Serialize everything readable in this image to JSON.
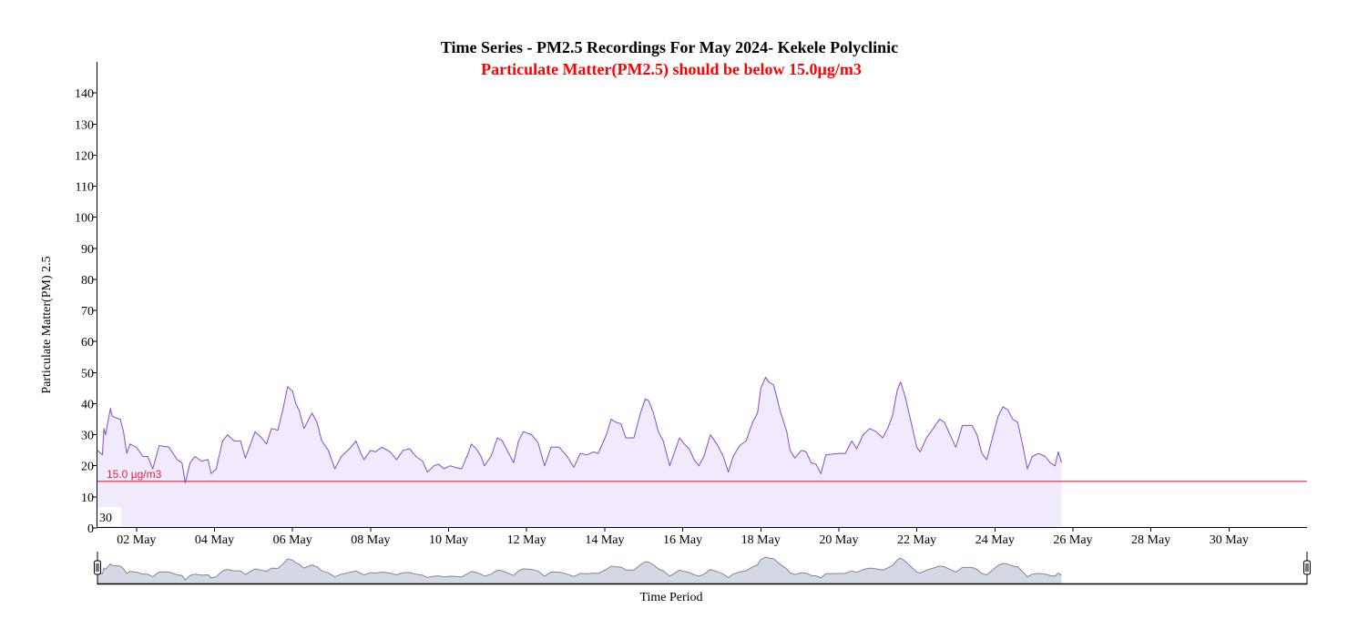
{
  "chart_data": {
    "type": "area",
    "title": "Time Series - PM2.5 Recordings For May 2024- Kekele Polyclinic",
    "subtitle": "Particulate Matter(PM2.5) should be below 15.0µg/m3",
    "ylabel": "Particulate Matter(PM) 2.5",
    "xlabel": "Time Period",
    "ylim": [
      0,
      150
    ],
    "yticks": [
      0,
      10,
      20,
      30,
      40,
      50,
      60,
      70,
      80,
      90,
      100,
      110,
      120,
      130,
      140
    ],
    "xlim": [
      "2024-05-01",
      "2024-06-01"
    ],
    "xtick_labels": [
      {
        "date": "2024-05-02",
        "label": "02 May"
      },
      {
        "date": "2024-05-04",
        "label": "04 May"
      },
      {
        "date": "2024-05-06",
        "label": "06 May"
      },
      {
        "date": "2024-05-08",
        "label": "08 May"
      },
      {
        "date": "2024-05-10",
        "label": "10 May"
      },
      {
        "date": "2024-05-12",
        "label": "12 May"
      },
      {
        "date": "2024-05-14",
        "label": "14 May"
      },
      {
        "date": "2024-05-16",
        "label": "16 May"
      },
      {
        "date": "2024-05-18",
        "label": "18 May"
      },
      {
        "date": "2024-05-20",
        "label": "20 May"
      },
      {
        "date": "2024-05-22",
        "label": "22 May"
      },
      {
        "date": "2024-05-24",
        "label": "24 May"
      },
      {
        "date": "2024-05-26",
        "label": "26 May"
      },
      {
        "date": "2024-05-28",
        "label": "28 May"
      },
      {
        "date": "2024-05-30",
        "label": "30 May"
      }
    ],
    "threshold": {
      "value": 15.0,
      "label": "15.0 µg/m3",
      "color": "#e8203c"
    },
    "line_color": "#7b4fd6",
    "fill_color": "#f1e9fc",
    "navigator_fill": "#d3d8e4",
    "navigator_line": "#7c889f",
    "range_selector_value": "30",
    "grid": false,
    "legend": "none",
    "series": [
      {
        "points": [
          [
            "2024-05-01 00:00",
            25
          ],
          [
            "2024-05-01 03:00",
            23.5
          ],
          [
            "2024-05-01 04:00",
            32
          ],
          [
            "2024-05-01 05:00",
            30
          ],
          [
            "2024-05-01 06:00",
            33
          ],
          [
            "2024-05-01 08:00",
            38.5
          ],
          [
            "2024-05-01 09:00",
            36
          ],
          [
            "2024-05-01 11:00",
            35.5
          ],
          [
            "2024-05-01 14:00",
            35
          ],
          [
            "2024-05-01 16:00",
            31
          ],
          [
            "2024-05-01 18:00",
            24
          ],
          [
            "2024-05-01 20:00",
            27
          ],
          [
            "2024-05-02 00:00",
            26
          ],
          [
            "2024-05-02 04:00",
            23
          ],
          [
            "2024-05-02 07:00",
            23
          ],
          [
            "2024-05-02 10:00",
            19
          ],
          [
            "2024-05-02 14:00",
            26.5
          ],
          [
            "2024-05-02 20:00",
            26
          ],
          [
            "2024-05-03 01:00",
            22
          ],
          [
            "2024-05-03 04:00",
            21
          ],
          [
            "2024-05-03 06:00",
            14.5
          ],
          [
            "2024-05-03 09:00",
            21
          ],
          [
            "2024-05-03 12:00",
            23
          ],
          [
            "2024-05-03 16:00",
            21.5
          ],
          [
            "2024-05-03 20:00",
            22
          ],
          [
            "2024-05-03 22:00",
            17.5
          ],
          [
            "2024-05-04 01:00",
            19
          ],
          [
            "2024-05-04 05:00",
            28
          ],
          [
            "2024-05-04 08:00",
            30
          ],
          [
            "2024-05-04 12:00",
            28
          ],
          [
            "2024-05-04 16:00",
            28
          ],
          [
            "2024-05-04 19:00",
            22.5
          ],
          [
            "2024-05-05 01:00",
            31
          ],
          [
            "2024-05-05 05:00",
            29
          ],
          [
            "2024-05-05 08:00",
            27
          ],
          [
            "2024-05-05 11:00",
            32
          ],
          [
            "2024-05-05 15:00",
            31.5
          ],
          [
            "2024-05-05 18:00",
            38
          ],
          [
            "2024-05-05 21:00",
            45.5
          ],
          [
            "2024-05-06 00:00",
            44
          ],
          [
            "2024-05-06 02:00",
            40
          ],
          [
            "2024-05-06 04:00",
            38
          ],
          [
            "2024-05-06 07:00",
            32
          ],
          [
            "2024-05-06 10:00",
            35
          ],
          [
            "2024-05-06 12:00",
            37
          ],
          [
            "2024-05-06 15:00",
            34
          ],
          [
            "2024-05-06 18:00",
            28
          ],
          [
            "2024-05-06 22:00",
            25
          ],
          [
            "2024-05-07 02:00",
            19
          ],
          [
            "2024-05-07 06:00",
            23
          ],
          [
            "2024-05-07 11:00",
            25.5
          ],
          [
            "2024-05-07 15:00",
            28
          ],
          [
            "2024-05-07 18:00",
            24
          ],
          [
            "2024-05-07 20:00",
            22
          ],
          [
            "2024-05-08 00:00",
            25
          ],
          [
            "2024-05-08 03:00",
            24.5
          ],
          [
            "2024-05-08 07:00",
            26
          ],
          [
            "2024-05-08 12:00",
            24.5
          ],
          [
            "2024-05-08 16:00",
            22
          ],
          [
            "2024-05-08 20:00",
            25
          ],
          [
            "2024-05-09 00:00",
            25.5
          ],
          [
            "2024-05-09 04:00",
            23
          ],
          [
            "2024-05-09 08:00",
            21.5
          ],
          [
            "2024-05-09 11:00",
            18
          ],
          [
            "2024-05-09 15:00",
            20
          ],
          [
            "2024-05-09 18:00",
            20.5
          ],
          [
            "2024-05-09 21:00",
            19
          ],
          [
            "2024-05-10 01:00",
            20
          ],
          [
            "2024-05-10 04:00",
            19.5
          ],
          [
            "2024-05-10 08:00",
            19
          ],
          [
            "2024-05-10 12:00",
            24
          ],
          [
            "2024-05-10 14:00",
            27
          ],
          [
            "2024-05-10 17:00",
            25.5
          ],
          [
            "2024-05-10 20:00",
            23
          ],
          [
            "2024-05-10 22:00",
            20
          ],
          [
            "2024-05-11 02:00",
            23
          ],
          [
            "2024-05-11 06:00",
            29
          ],
          [
            "2024-05-11 09:00",
            28
          ],
          [
            "2024-05-11 13:00",
            24
          ],
          [
            "2024-05-11 16:00",
            21
          ],
          [
            "2024-05-11 19:00",
            28
          ],
          [
            "2024-05-11 22:00",
            31
          ],
          [
            "2024-05-12 03:00",
            30
          ],
          [
            "2024-05-12 07:00",
            27.5
          ],
          [
            "2024-05-12 11:00",
            20
          ],
          [
            "2024-05-12 15:00",
            26
          ],
          [
            "2024-05-12 20:00",
            26
          ],
          [
            "2024-05-13 01:00",
            23
          ],
          [
            "2024-05-13 05:00",
            19.5
          ],
          [
            "2024-05-13 09:00",
            24
          ],
          [
            "2024-05-13 13:00",
            23.5
          ],
          [
            "2024-05-13 17:00",
            24.5
          ],
          [
            "2024-05-13 20:00",
            24
          ],
          [
            "2024-05-14 01:00",
            30
          ],
          [
            "2024-05-14 04:00",
            35
          ],
          [
            "2024-05-14 07:00",
            34
          ],
          [
            "2024-05-14 10:00",
            33.5
          ],
          [
            "2024-05-14 13:00",
            29
          ],
          [
            "2024-05-14 18:00",
            29
          ],
          [
            "2024-05-14 22:00",
            37
          ],
          [
            "2024-05-15 01:00",
            41.5
          ],
          [
            "2024-05-15 03:00",
            41
          ],
          [
            "2024-05-15 06:00",
            37
          ],
          [
            "2024-05-15 09:00",
            31
          ],
          [
            "2024-05-15 12:00",
            28
          ],
          [
            "2024-05-15 16:00",
            20
          ],
          [
            "2024-05-15 19:00",
            24.5
          ],
          [
            "2024-05-15 22:00",
            29
          ],
          [
            "2024-05-16 01:00",
            27
          ],
          [
            "2024-05-16 04:00",
            25.5
          ],
          [
            "2024-05-16 07:00",
            22
          ],
          [
            "2024-05-16 10:00",
            20
          ],
          [
            "2024-05-16 13:00",
            23
          ],
          [
            "2024-05-16 17:00",
            30
          ],
          [
            "2024-05-16 21:00",
            27
          ],
          [
            "2024-05-17 01:00",
            23
          ],
          [
            "2024-05-17 04:00",
            18
          ],
          [
            "2024-05-17 07:00",
            23
          ],
          [
            "2024-05-17 11:00",
            26.5
          ],
          [
            "2024-05-17 15:00",
            28
          ],
          [
            "2024-05-17 19:00",
            34
          ],
          [
            "2024-05-17 22:00",
            37
          ],
          [
            "2024-05-18 00:00",
            45
          ],
          [
            "2024-05-18 03:00",
            48.5
          ],
          [
            "2024-05-18 05:00",
            47
          ],
          [
            "2024-05-18 08:00",
            46
          ],
          [
            "2024-05-18 12:00",
            37.5
          ],
          [
            "2024-05-18 16:00",
            31
          ],
          [
            "2024-05-18 18:00",
            25
          ],
          [
            "2024-05-18 21:00",
            22.5
          ],
          [
            "2024-05-19 01:00",
            25
          ],
          [
            "2024-05-19 04:00",
            24.5
          ],
          [
            "2024-05-19 07:00",
            21
          ],
          [
            "2024-05-19 10:00",
            20.5
          ],
          [
            "2024-05-19 13:00",
            17.5
          ],
          [
            "2024-05-19 16:00",
            23.5
          ],
          [
            "2024-05-20 00:00",
            24
          ],
          [
            "2024-05-20 04:00",
            24
          ],
          [
            "2024-05-20 08:00",
            28
          ],
          [
            "2024-05-20 11:00",
            25.5
          ],
          [
            "2024-05-20 15:00",
            30
          ],
          [
            "2024-05-20 19:00",
            32
          ],
          [
            "2024-05-20 23:00",
            31
          ],
          [
            "2024-05-21 03:00",
            29
          ],
          [
            "2024-05-21 06:00",
            32
          ],
          [
            "2024-05-21 09:00",
            36
          ],
          [
            "2024-05-21 12:00",
            44.5
          ],
          [
            "2024-05-21 14:00",
            47
          ],
          [
            "2024-05-21 17:00",
            42
          ],
          [
            "2024-05-21 20:00",
            35
          ],
          [
            "2024-05-22 00:00",
            26
          ],
          [
            "2024-05-22 02:00",
            24.5
          ],
          [
            "2024-05-22 06:00",
            29
          ],
          [
            "2024-05-22 10:00",
            32
          ],
          [
            "2024-05-22 14:00",
            35
          ],
          [
            "2024-05-22 17:00",
            34
          ],
          [
            "2024-05-22 20:00",
            30.5
          ],
          [
            "2024-05-23 00:00",
            26
          ],
          [
            "2024-05-23 04:00",
            33
          ],
          [
            "2024-05-23 07:00",
            33
          ],
          [
            "2024-05-23 10:00",
            33
          ],
          [
            "2024-05-23 13:00",
            30
          ],
          [
            "2024-05-23 16:00",
            24
          ],
          [
            "2024-05-23 19:00",
            22
          ],
          [
            "2024-05-23 23:00",
            30
          ],
          [
            "2024-05-24 02:00",
            36
          ],
          [
            "2024-05-24 05:00",
            39
          ],
          [
            "2024-05-24 08:00",
            38
          ],
          [
            "2024-05-24 11:00",
            35
          ],
          [
            "2024-05-24 14:00",
            34
          ],
          [
            "2024-05-24 17:00",
            27
          ],
          [
            "2024-05-24 20:00",
            19
          ],
          [
            "2024-05-24 23:00",
            23
          ],
          [
            "2024-05-25 03:00",
            24
          ],
          [
            "2024-05-25 07:00",
            23
          ],
          [
            "2024-05-25 10:00",
            21
          ],
          [
            "2024-05-25 13:00",
            20
          ],
          [
            "2024-05-25 15:00",
            24.5
          ],
          [
            "2024-05-25 17:00",
            21
          ]
        ]
      }
    ]
  }
}
